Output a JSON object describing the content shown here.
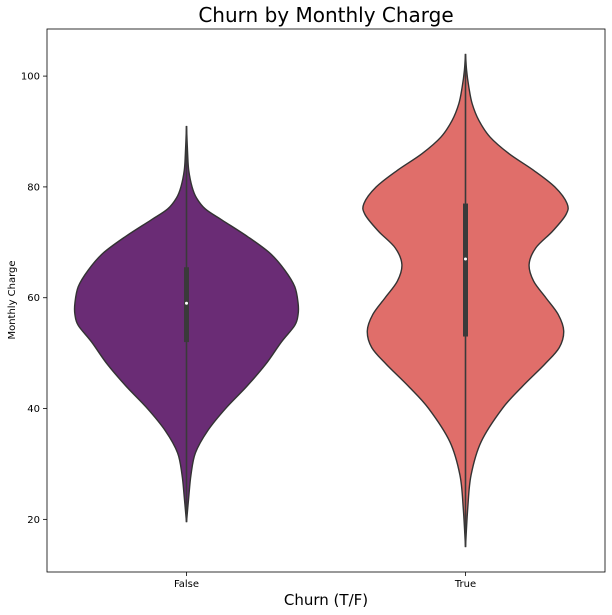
{
  "chart_data": {
    "type": "violin",
    "title": "Churn by Monthly Charge",
    "xlabel": "Churn (T/F)",
    "ylabel": "Monthly Charge",
    "categories": [
      "False",
      "True"
    ],
    "ylim": [
      10.5,
      108.5
    ],
    "yticks": [
      20,
      40,
      60,
      80,
      100
    ],
    "ytick_labels": [
      "20",
      "40",
      "60",
      "80",
      "100"
    ],
    "grid": false,
    "series": [
      {
        "category": "False",
        "color": "#6a2c75",
        "min": 19.5,
        "q1": 52,
        "median": 59,
        "q3": 65.5,
        "max": 91,
        "density": [
          [
            19.5,
            0.0
          ],
          [
            24,
            0.02
          ],
          [
            28,
            0.04
          ],
          [
            32,
            0.08
          ],
          [
            36,
            0.19
          ],
          [
            40,
            0.35
          ],
          [
            44,
            0.54
          ],
          [
            48,
            0.71
          ],
          [
            52,
            0.85
          ],
          [
            55,
            0.97
          ],
          [
            57,
            1.0
          ],
          [
            59,
            1.0
          ],
          [
            62,
            0.97
          ],
          [
            65,
            0.88
          ],
          [
            68,
            0.75
          ],
          [
            71,
            0.55
          ],
          [
            74,
            0.32
          ],
          [
            76,
            0.17
          ],
          [
            78,
            0.09
          ],
          [
            80,
            0.05
          ],
          [
            83,
            0.02
          ],
          [
            86,
            0.01
          ],
          [
            91,
            0.0
          ]
        ]
      },
      {
        "category": "True",
        "color": "#e06e6a",
        "min": 15,
        "q1": 53,
        "median": 67,
        "q3": 77,
        "max": 104,
        "density": [
          [
            15,
            0.0
          ],
          [
            22,
            0.02
          ],
          [
            28,
            0.05
          ],
          [
            34,
            0.14
          ],
          [
            40,
            0.33
          ],
          [
            44,
            0.51
          ],
          [
            48,
            0.71
          ],
          [
            51,
            0.84
          ],
          [
            54,
            0.88
          ],
          [
            57,
            0.83
          ],
          [
            60,
            0.72
          ],
          [
            63,
            0.61
          ],
          [
            66,
            0.57
          ],
          [
            69,
            0.63
          ],
          [
            72,
            0.78
          ],
          [
            75,
            0.9
          ],
          [
            77,
            0.91
          ],
          [
            80,
            0.8
          ],
          [
            83,
            0.61
          ],
          [
            86,
            0.39
          ],
          [
            89,
            0.22
          ],
          [
            92,
            0.12
          ],
          [
            95,
            0.06
          ],
          [
            98,
            0.03
          ],
          [
            101,
            0.01
          ],
          [
            104,
            0.0
          ]
        ]
      }
    ]
  }
}
